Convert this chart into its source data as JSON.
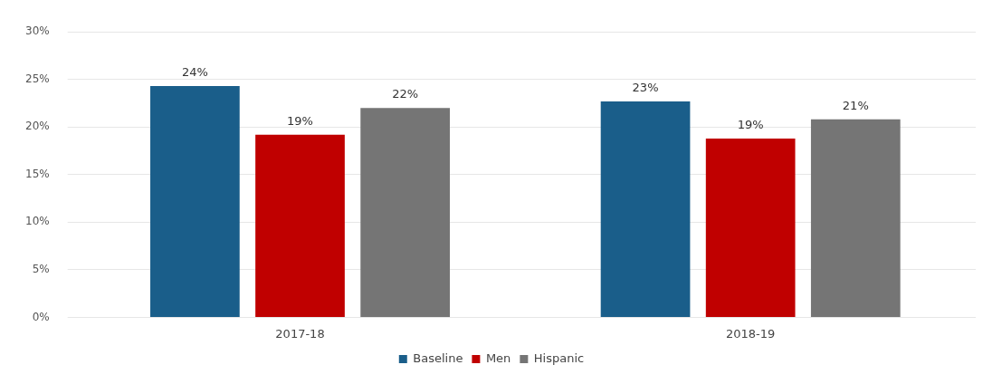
{
  "chart_data": {
    "type": "bar",
    "categories": [
      "2017-18",
      "2018-19"
    ],
    "series": [
      {
        "name": "Baseline",
        "color": "#1a5e8a",
        "values": [
          24.3,
          22.7
        ],
        "value_labels": [
          "24%",
          "23%"
        ]
      },
      {
        "name": "Men",
        "color": "#c00000",
        "values": [
          19.2,
          18.8
        ],
        "value_labels": [
          "19%",
          "19%"
        ]
      },
      {
        "name": "Hispanic",
        "color": "#757575",
        "values": [
          22,
          20.8
        ],
        "value_labels": [
          "22%",
          "21%"
        ]
      }
    ],
    "ylim": [
      0,
      30
    ],
    "yticks": [
      {
        "value": 0,
        "label": "0%"
      },
      {
        "value": 5,
        "label": "5%"
      },
      {
        "value": 10,
        "label": "10%"
      },
      {
        "value": 15,
        "label": "15%"
      },
      {
        "value": 20,
        "label": "20%"
      },
      {
        "value": 25,
        "label": "25%"
      },
      {
        "value": 30,
        "label": "30%"
      }
    ],
    "grid": "y",
    "legend": "bottom"
  }
}
